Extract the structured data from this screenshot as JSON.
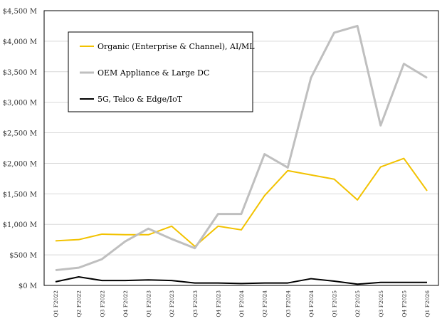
{
  "chart_data": {
    "type": "line",
    "title": "",
    "xlabel": "",
    "ylabel": "",
    "ylim": [
      0,
      4500
    ],
    "yticks": [
      "$0 M",
      "$500 M",
      "$1,000 M",
      "$1,500 M",
      "$2,000 M",
      "$2,500 M",
      "$3,000 M",
      "$3,500 M",
      "$4,000 M",
      "$4,500 M"
    ],
    "grid": "horizontal",
    "legend_placement": "top-left",
    "categories": [
      "Q1 F2022",
      "Q2 F2022",
      "Q3 F2022",
      "Q4 F2022",
      "Q1 F2023",
      "Q2 F2023",
      "Q3 F2023",
      "Q4 F2023",
      "Q1 F2024",
      "Q2 F2024",
      "Q3 F2024",
      "Q4 F2024",
      "Q1 F2025",
      "Q2 F2025",
      "Q3 F2025",
      "Q4 F2025",
      "Q1 F2026"
    ],
    "series": [
      {
        "name": "Organic (Enterprise & Channel), AI/ML",
        "color": "#F2C200",
        "values": [
          730,
          750,
          840,
          830,
          830,
          970,
          640,
          970,
          910,
          1470,
          1880,
          1810,
          1740,
          1400,
          1940,
          2080,
          1550
        ]
      },
      {
        "name": "OEM Appliance & Large DC",
        "color": "#BFBFBF",
        "values": [
          250,
          290,
          430,
          720,
          930,
          760,
          610,
          1170,
          1170,
          2150,
          1930,
          3400,
          4140,
          4250,
          2620,
          3630,
          3400
        ]
      },
      {
        "name": "5G, Telco & Edge/IoT",
        "color": "#000000",
        "values": [
          60,
          140,
          80,
          80,
          90,
          80,
          40,
          40,
          30,
          40,
          40,
          110,
          70,
          20,
          50,
          50,
          50
        ]
      }
    ]
  }
}
